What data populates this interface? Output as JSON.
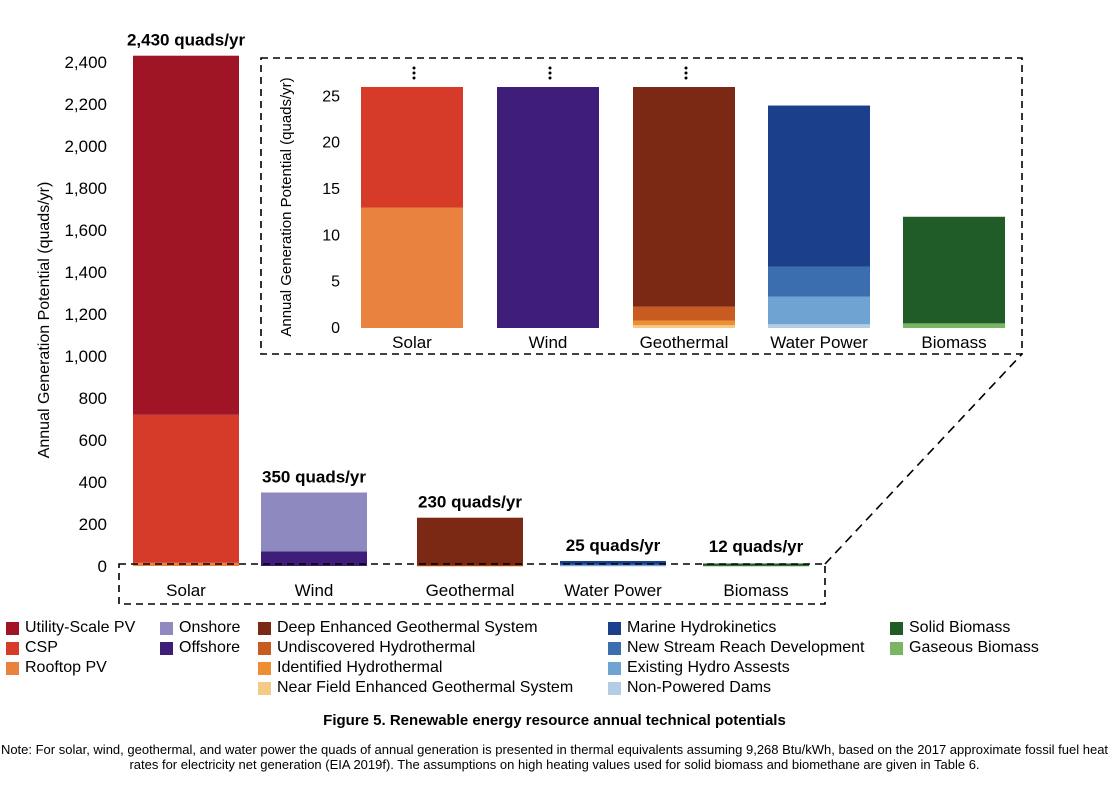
{
  "chart_data": [
    {
      "type": "bar",
      "stacked": true,
      "categories": [
        "Solar",
        "Wind",
        "Geothermal",
        "Water Power",
        "Biomass"
      ],
      "ylabel": "Annual Generation Potential (quads/yr)",
      "ylim": [
        0,
        2400
      ],
      "yticks": [
        0,
        200,
        400,
        600,
        800,
        1000,
        1200,
        1400,
        1600,
        1800,
        2000,
        2200,
        2400
      ],
      "ytick_labels": [
        "0",
        "200",
        "400",
        "600",
        "800",
        "1,000",
        "1,200",
        "1,400",
        "1,600",
        "1,800",
        "2,000",
        "2,200",
        "2,400"
      ],
      "totals": [
        "2,430 quads/yr",
        "350 quads/yr",
        "230 quads/yr",
        "25 quads/yr",
        "12 quads/yr"
      ],
      "series": [
        {
          "name": "Rooftop PV",
          "color": "#E8823E",
          "values": [
            15,
            0,
            0,
            0,
            0
          ]
        },
        {
          "name": "CSP",
          "color": "#D63A29",
          "values": [
            705,
            0,
            0,
            0,
            0
          ]
        },
        {
          "name": "Utility-Scale PV",
          "color": "#A01525",
          "values": [
            1710,
            0,
            0,
            0,
            0
          ]
        },
        {
          "name": "Offshore",
          "color": "#3F1E7A",
          "values": [
            0,
            70,
            0,
            0,
            0
          ]
        },
        {
          "name": "Onshore",
          "color": "#8E8ABF",
          "values": [
            0,
            280,
            0,
            0,
            0
          ]
        },
        {
          "name": "Near Field Enhanced Geothermal System",
          "color": "#F3CB86",
          "values": [
            0,
            0,
            0.3,
            0,
            0
          ]
        },
        {
          "name": "Identified Hydrothermal",
          "color": "#EE8E33",
          "values": [
            0,
            0,
            0.5,
            0,
            0
          ]
        },
        {
          "name": "Undiscovered Hydrothermal",
          "color": "#C95A20",
          "values": [
            0,
            0,
            1.5,
            0,
            0
          ]
        },
        {
          "name": "Deep Enhanced Geothermal System",
          "color": "#7B2915",
          "values": [
            0,
            0,
            227.7,
            0,
            0
          ]
        },
        {
          "name": "Non-Powered Dams",
          "color": "#B4CDE6",
          "values": [
            0,
            0,
            0,
            0.4,
            0
          ]
        },
        {
          "name": "Existing Hydro Assests",
          "color": "#6FA3D2",
          "values": [
            0,
            0,
            0,
            3,
            0
          ]
        },
        {
          "name": "New Stream Reach Development",
          "color": "#3B6EAE",
          "values": [
            0,
            0,
            0,
            3.2,
            0
          ]
        },
        {
          "name": "Marine Hydrokinetics",
          "color": "#1C3F8C",
          "values": [
            0,
            0,
            0,
            17.4,
            0
          ]
        },
        {
          "name": "Gaseous Biomass",
          "color": "#79B563",
          "values": [
            0,
            0,
            0,
            0,
            0.5
          ]
        },
        {
          "name": "Solid Biomass",
          "color": "#1F5C28",
          "values": [
            0,
            0,
            0,
            0,
            11.5
          ]
        }
      ]
    },
    {
      "type": "bar",
      "stacked": true,
      "inset": true,
      "categories": [
        "Solar",
        "Wind",
        "Geothermal",
        "Water Power",
        "Biomass"
      ],
      "ylabel": "Annual Generation Potential (quads/yr)",
      "ylim": [
        0,
        26
      ],
      "yticks": [
        0,
        5,
        10,
        15,
        20,
        25
      ],
      "truncated_categories": [
        "Solar",
        "Wind",
        "Geothermal"
      ],
      "series": [
        {
          "name": "Rooftop PV",
          "color": "#E8823E",
          "values": [
            13,
            0,
            0,
            0,
            0
          ]
        },
        {
          "name": "CSP",
          "color": "#D63A29",
          "values": [
            13,
            0,
            0,
            0,
            0
          ]
        },
        {
          "name": "Offshore",
          "color": "#3F1E7A",
          "values": [
            0,
            26,
            0,
            0,
            0
          ]
        },
        {
          "name": "Near Field Enhanced Geothermal System",
          "color": "#F3CB86",
          "values": [
            0,
            0,
            0.3,
            0,
            0
          ]
        },
        {
          "name": "Identified Hydrothermal",
          "color": "#EE8E33",
          "values": [
            0,
            0,
            0.5,
            0,
            0
          ]
        },
        {
          "name": "Undiscovered Hydrothermal",
          "color": "#C95A20",
          "values": [
            0,
            0,
            1.5,
            0,
            0
          ]
        },
        {
          "name": "Deep Enhanced Geothermal System",
          "color": "#7B2915",
          "values": [
            0,
            0,
            23.7,
            0,
            0
          ]
        },
        {
          "name": "Non-Powered Dams",
          "color": "#B4CDE6",
          "values": [
            0,
            0,
            0,
            0.4,
            0
          ]
        },
        {
          "name": "Existing Hydro Assests",
          "color": "#6FA3D2",
          "values": [
            0,
            0,
            0,
            3,
            0
          ]
        },
        {
          "name": "New Stream Reach Development",
          "color": "#3B6EAE",
          "values": [
            0,
            0,
            0,
            3.2,
            0
          ]
        },
        {
          "name": "Marine Hydrokinetics",
          "color": "#1C3F8C",
          "values": [
            0,
            0,
            0,
            17.4,
            0
          ]
        },
        {
          "name": "Gaseous Biomass",
          "color": "#79B563",
          "values": [
            0,
            0,
            0,
            0,
            0.5
          ]
        },
        {
          "name": "Solid Biomass",
          "color": "#1F5C28",
          "values": [
            0,
            0,
            0,
            0,
            11.5
          ]
        }
      ]
    }
  ],
  "legend": {
    "columns": [
      [
        {
          "label": "Utility-Scale PV",
          "color": "#A01525"
        },
        {
          "label": "CSP",
          "color": "#D63A29"
        },
        {
          "label": "Rooftop PV",
          "color": "#E8823E"
        }
      ],
      [
        {
          "label": "Onshore",
          "color": "#8E8ABF"
        },
        {
          "label": "Offshore",
          "color": "#3F1E7A"
        }
      ],
      [
        {
          "label": "Deep Enhanced Geothermal System",
          "color": "#7B2915"
        },
        {
          "label": "Undiscovered Hydrothermal",
          "color": "#C95A20"
        },
        {
          "label": "Identified Hydrothermal",
          "color": "#EE8E33"
        },
        {
          "label": "Near Field Enhanced Geothermal System",
          "color": "#F3CB86"
        }
      ],
      [
        {
          "label": "Marine Hydrokinetics",
          "color": "#1C3F8C"
        },
        {
          "label": "New Stream Reach Development",
          "color": "#3B6EAE"
        },
        {
          "label": "Existing Hydro Assests",
          "color": "#6FA3D2"
        },
        {
          "label": "Non-Powered Dams",
          "color": "#B4CDE6"
        }
      ],
      [
        {
          "label": "Solid Biomass",
          "color": "#1F5C28"
        },
        {
          "label": "Gaseous Biomass",
          "color": "#79B563"
        }
      ]
    ]
  },
  "caption": "Figure 5. Renewable energy resource annual technical potentials",
  "note": "Note: For solar, wind, geothermal, and water power the quads of annual generation is presented in thermal equivalents assuming 9,268 Btu/kWh, based on the 2017 approximate fossil fuel heat rates for electricity net generation (EIA 2019f). The assumptions on high heating values used for solid biomass and biomethane are given in Table 6."
}
